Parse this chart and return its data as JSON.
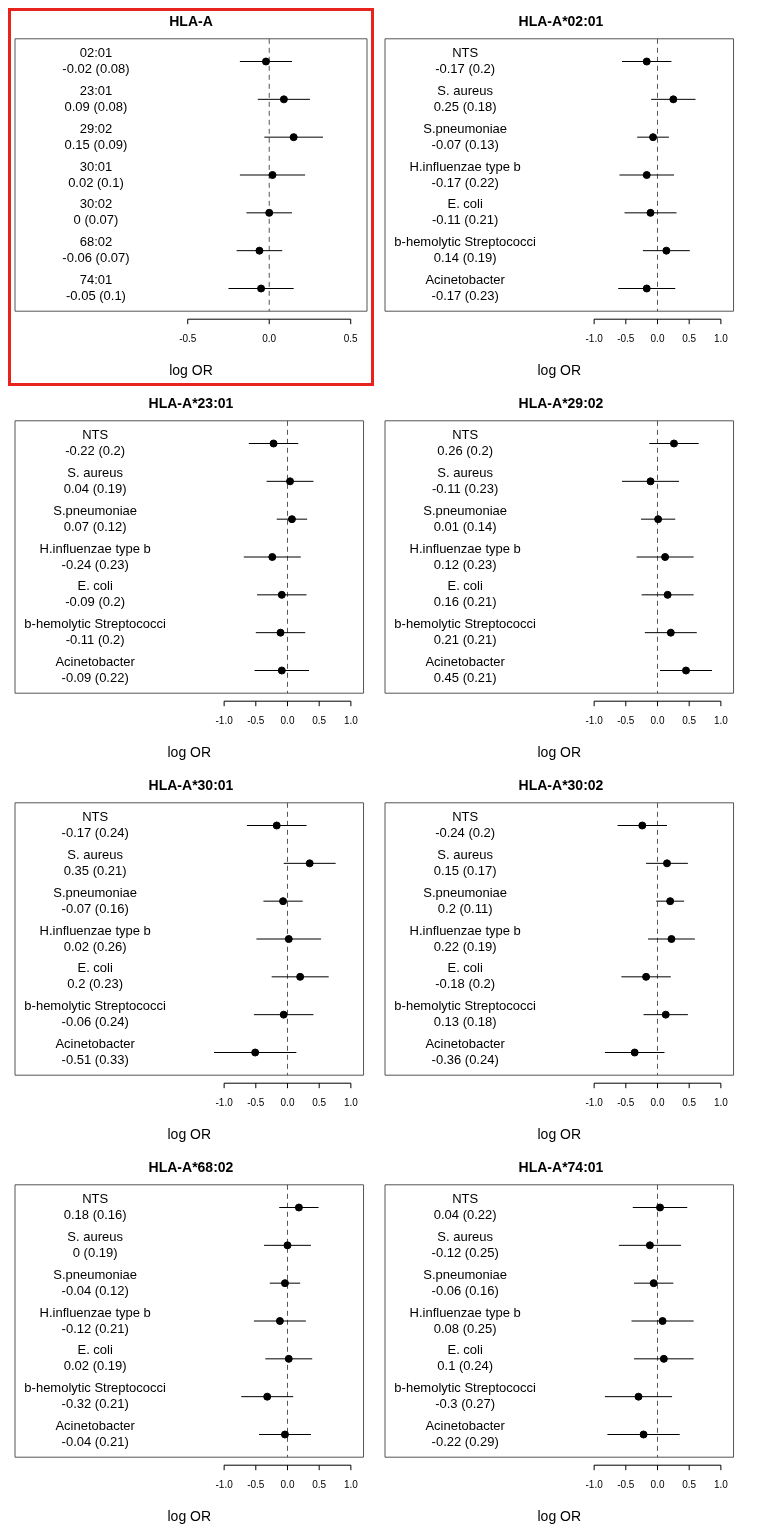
{
  "chart_data": [
    {
      "type": "scatter",
      "orientation": "horizontal",
      "title": "HLA-A",
      "xlabel": "log OR",
      "categories": [
        "02:01\n-0.02 (0.08)",
        "23:01\n0.09 (0.08)",
        "29:02\n0.15 (0.09)",
        "30:01\n0.02 (0.1)",
        "30:02\n0 (0.07)",
        "68:02\n-0.06 (0.07)",
        "74:01\n-0.05 (0.1)"
      ],
      "values": [
        -0.02,
        0.09,
        0.15,
        0.02,
        0,
        -0.06,
        -0.05
      ],
      "errors": [
        0.16,
        0.16,
        0.18,
        0.2,
        0.14,
        0.14,
        0.2
      ],
      "color": "#000000",
      "marker": "circle",
      "xlim": [
        -1.56,
        0.6
      ],
      "xticks": [
        {
          "value": -0.5,
          "label": "-0.5"
        },
        {
          "value": 0,
          "label": "0.0"
        },
        {
          "value": 0.5,
          "label": "0.5"
        }
      ],
      "ref_lines": [
        {
          "axis": "x",
          "value": 0,
          "line_style": "dashed"
        }
      ]
    },
    {
      "type": "scatter",
      "orientation": "horizontal",
      "title": "HLA-A*02:01",
      "xlabel": "log OR",
      "categories": [
        "NTS\n-0.17 (0.2)",
        "S. aureus\n0.25 (0.18)",
        "S.pneumoniae\n-0.07 (0.13)",
        "H.influenzae type b\n-0.17 (0.22)",
        "E. coli\n-0.11 (0.21)",
        "b-hemolytic Streptococci\n0.14 (0.19)",
        "Acinetobacter\n-0.17 (0.23)"
      ],
      "values": [
        -0.17,
        0.25,
        -0.07,
        -0.17,
        -0.11,
        0.14,
        -0.17
      ],
      "errors": [
        0.39,
        0.35,
        0.25,
        0.43,
        0.41,
        0.37,
        0.45
      ],
      "color": "#000000",
      "marker": "circle",
      "xlim": [
        -4.3,
        1.2
      ],
      "xticks": [
        {
          "value": -1,
          "label": "-1.0"
        },
        {
          "value": -0.5,
          "label": "-0.5"
        },
        {
          "value": 0,
          "label": "0.0"
        },
        {
          "value": 0.5,
          "label": "0.5"
        },
        {
          "value": 1,
          "label": "1.0"
        }
      ],
      "ref_lines": [
        {
          "axis": "x",
          "value": 0,
          "line_style": "dashed"
        }
      ]
    },
    {
      "type": "scatter",
      "orientation": "horizontal",
      "title": "HLA-A*23:01",
      "xlabel": "log OR",
      "categories": [
        "NTS\n-0.22 (0.2)",
        "S. aureus\n0.04 (0.19)",
        "S.pneumoniae\n0.07 (0.12)",
        "H.influenzae type b\n-0.24 (0.23)",
        "E. coli\n-0.09 (0.2)",
        "b-hemolytic Streptococci\n-0.11 (0.2)",
        "Acinetobacter\n-0.09 (0.22)"
      ],
      "values": [
        -0.22,
        0.04,
        0.07,
        -0.24,
        -0.09,
        -0.11,
        -0.09
      ],
      "errors": [
        0.39,
        0.37,
        0.24,
        0.45,
        0.39,
        0.39,
        0.43
      ],
      "color": "#000000",
      "marker": "circle",
      "xlim": [
        -4.3,
        1.2
      ],
      "xticks": [
        {
          "value": -1,
          "label": "-1.0"
        },
        {
          "value": -0.5,
          "label": "-0.5"
        },
        {
          "value": 0,
          "label": "0.0"
        },
        {
          "value": 0.5,
          "label": "0.5"
        },
        {
          "value": 1,
          "label": "1.0"
        }
      ],
      "ref_lines": [
        {
          "axis": "x",
          "value": 0,
          "line_style": "dashed"
        }
      ]
    },
    {
      "type": "scatter",
      "orientation": "horizontal",
      "title": "HLA-A*29:02",
      "xlabel": "log OR",
      "categories": [
        "NTS\n0.26 (0.2)",
        "S. aureus\n-0.11 (0.23)",
        "S.pneumoniae\n0.01 (0.14)",
        "H.influenzae type b\n0.12 (0.23)",
        "E. coli\n0.16 (0.21)",
        "b-hemolytic Streptococci\n0.21 (0.21)",
        "Acinetobacter\n0.45 (0.21)"
      ],
      "values": [
        0.26,
        -0.11,
        0.01,
        0.12,
        0.16,
        0.21,
        0.45
      ],
      "errors": [
        0.39,
        0.45,
        0.27,
        0.45,
        0.41,
        0.41,
        0.41
      ],
      "color": "#000000",
      "marker": "circle",
      "xlim": [
        -4.3,
        1.2
      ],
      "xticks": [
        {
          "value": -1,
          "label": "-1.0"
        },
        {
          "value": -0.5,
          "label": "-0.5"
        },
        {
          "value": 0,
          "label": "0.0"
        },
        {
          "value": 0.5,
          "label": "0.5"
        },
        {
          "value": 1,
          "label": "1.0"
        }
      ],
      "ref_lines": [
        {
          "axis": "x",
          "value": 0,
          "line_style": "dashed"
        }
      ]
    },
    {
      "type": "scatter",
      "orientation": "horizontal",
      "title": "HLA-A*30:01",
      "xlabel": "log OR",
      "categories": [
        "NTS\n-0.17 (0.24)",
        "S. aureus\n0.35 (0.21)",
        "S.pneumoniae\n-0.07 (0.16)",
        "H.influenzae type b\n0.02 (0.26)",
        "E. coli\n0.2 (0.23)",
        "b-hemolytic Streptococci\n-0.06 (0.24)",
        "Acinetobacter\n-0.51 (0.33)"
      ],
      "values": [
        -0.17,
        0.35,
        -0.07,
        0.02,
        0.2,
        -0.06,
        -0.51
      ],
      "errors": [
        0.47,
        0.41,
        0.31,
        0.51,
        0.45,
        0.47,
        0.65
      ],
      "color": "#000000",
      "marker": "circle",
      "xlim": [
        -4.3,
        1.2
      ],
      "xticks": [
        {
          "value": -1,
          "label": "-1.0"
        },
        {
          "value": -0.5,
          "label": "-0.5"
        },
        {
          "value": 0,
          "label": "0.0"
        },
        {
          "value": 0.5,
          "label": "0.5"
        },
        {
          "value": 1,
          "label": "1.0"
        }
      ],
      "ref_lines": [
        {
          "axis": "x",
          "value": 0,
          "line_style": "dashed"
        }
      ]
    },
    {
      "type": "scatter",
      "orientation": "horizontal",
      "title": "HLA-A*30:02",
      "xlabel": "log OR",
      "categories": [
        "NTS\n-0.24 (0.2)",
        "S. aureus\n0.15 (0.17)",
        "S.pneumoniae\n0.2 (0.11)",
        "H.influenzae type b\n0.22 (0.19)",
        "E. coli\n-0.18 (0.2)",
        "b-hemolytic Streptococci\n0.13 (0.18)",
        "Acinetobacter\n-0.36 (0.24)"
      ],
      "values": [
        -0.24,
        0.15,
        0.2,
        0.22,
        -0.18,
        0.13,
        -0.36
      ],
      "errors": [
        0.39,
        0.33,
        0.22,
        0.37,
        0.39,
        0.35,
        0.47
      ],
      "color": "#000000",
      "marker": "circle",
      "xlim": [
        -4.3,
        1.2
      ],
      "xticks": [
        {
          "value": -1,
          "label": "-1.0"
        },
        {
          "value": -0.5,
          "label": "-0.5"
        },
        {
          "value": 0,
          "label": "0.0"
        },
        {
          "value": 0.5,
          "label": "0.5"
        },
        {
          "value": 1,
          "label": "1.0"
        }
      ],
      "ref_lines": [
        {
          "axis": "x",
          "value": 0,
          "line_style": "dashed"
        }
      ]
    },
    {
      "type": "scatter",
      "orientation": "horizontal",
      "title": "HLA-A*68:02",
      "xlabel": "log OR",
      "categories": [
        "NTS\n0.18 (0.16)",
        "S. aureus\n0 (0.19)",
        "S.pneumoniae\n-0.04 (0.12)",
        "H.influenzae type b\n-0.12 (0.21)",
        "E. coli\n0.02 (0.19)",
        "b-hemolytic Streptococci\n-0.32 (0.21)",
        "Acinetobacter\n-0.04 (0.21)"
      ],
      "values": [
        0.18,
        0,
        -0.04,
        -0.12,
        0.02,
        -0.32,
        -0.04
      ],
      "errors": [
        0.31,
        0.37,
        0.24,
        0.41,
        0.37,
        0.41,
        0.41
      ],
      "color": "#000000",
      "marker": "circle",
      "xlim": [
        -4.3,
        1.2
      ],
      "xticks": [
        {
          "value": -1,
          "label": "-1.0"
        },
        {
          "value": -0.5,
          "label": "-0.5"
        },
        {
          "value": 0,
          "label": "0.0"
        },
        {
          "value": 0.5,
          "label": "0.5"
        },
        {
          "value": 1,
          "label": "1.0"
        }
      ],
      "ref_lines": [
        {
          "axis": "x",
          "value": 0,
          "line_style": "dashed"
        }
      ]
    },
    {
      "type": "scatter",
      "orientation": "horizontal",
      "title": "HLA-A*74:01",
      "xlabel": "log OR",
      "categories": [
        "NTS\n0.04 (0.22)",
        "S. aureus\n-0.12 (0.25)",
        "S.pneumoniae\n-0.06 (0.16)",
        "H.influenzae type b\n0.08 (0.25)",
        "E. coli\n0.1 (0.24)",
        "b-hemolytic Streptococci\n-0.3 (0.27)",
        "Acinetobacter\n-0.22 (0.29)"
      ],
      "values": [
        0.04,
        -0.12,
        -0.06,
        0.08,
        0.1,
        -0.3,
        -0.22
      ],
      "errors": [
        0.43,
        0.49,
        0.31,
        0.49,
        0.47,
        0.53,
        0.57
      ],
      "color": "#000000",
      "marker": "circle",
      "xlim": [
        -4.3,
        1.2
      ],
      "xticks": [
        {
          "value": -1,
          "label": "-1.0"
        },
        {
          "value": -0.5,
          "label": "-0.5"
        },
        {
          "value": 0,
          "label": "0.0"
        },
        {
          "value": 0.5,
          "label": "0.5"
        },
        {
          "value": 1,
          "label": "1.0"
        }
      ],
      "ref_lines": [
        {
          "axis": "x",
          "value": 0,
          "line_style": "dashed"
        }
      ]
    }
  ]
}
